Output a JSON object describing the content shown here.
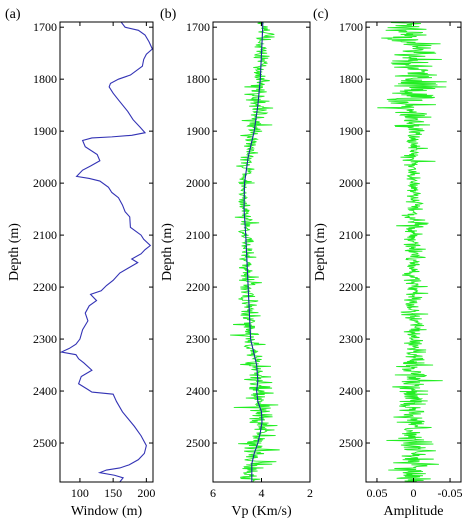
{
  "chart_data": [
    {
      "type": "line",
      "panel_label": "(a)",
      "xlabel": "Window (m)",
      "ylabel": "Depth (m)",
      "xlim": [
        70,
        210
      ],
      "ylim": [
        1690,
        2575
      ],
      "y_inverted": true,
      "xticks": [
        100,
        150,
        200
      ],
      "xtick_labels": [
        "100",
        "150",
        "200"
      ],
      "yticks": [
        1700,
        1800,
        1900,
        2000,
        2100,
        2200,
        2300,
        2400,
        2500
      ],
      "series": [
        {
          "color": "#3333b5",
          "points": [
            [
              162,
              1690
            ],
            [
              168,
              1700
            ],
            [
              188,
              1706
            ],
            [
              198,
              1715
            ],
            [
              204,
              1728
            ],
            [
              209,
              1742
            ],
            [
              200,
              1752
            ],
            [
              196,
              1762
            ],
            [
              194,
              1775
            ],
            [
              176,
              1792
            ],
            [
              158,
              1800
            ],
            [
              146,
              1808
            ],
            [
              144,
              1815
            ],
            [
              150,
              1827
            ],
            [
              158,
              1840
            ],
            [
              172,
              1862
            ],
            [
              180,
              1878
            ],
            [
              191,
              1893
            ],
            [
              198,
              1903
            ],
            [
              178,
              1908
            ],
            [
              148,
              1911
            ],
            [
              118,
              1913
            ],
            [
              104,
              1918
            ],
            [
              108,
              1930
            ],
            [
              126,
              1945
            ],
            [
              130,
              1957
            ],
            [
              116,
              1967
            ],
            [
              104,
              1975
            ],
            [
              95,
              1987
            ],
            [
              114,
              1991
            ],
            [
              130,
              1996
            ],
            [
              143,
              2008
            ],
            [
              148,
              2018
            ],
            [
              158,
              2028
            ],
            [
              164,
              2042
            ],
            [
              168,
              2055
            ],
            [
              175,
              2065
            ],
            [
              176,
              2085
            ],
            [
              192,
              2100
            ],
            [
              196,
              2108
            ],
            [
              206,
              2120
            ],
            [
              198,
              2128
            ],
            [
              192,
              2136
            ],
            [
              178,
              2146
            ],
            [
              187,
              2153
            ],
            [
              172,
              2164
            ],
            [
              160,
              2173
            ],
            [
              150,
              2187
            ],
            [
              140,
              2197
            ],
            [
              132,
              2207
            ],
            [
              116,
              2214
            ],
            [
              125,
              2226
            ],
            [
              114,
              2236
            ],
            [
              108,
              2250
            ],
            [
              112,
              2265
            ],
            [
              104,
              2282
            ],
            [
              100,
              2300
            ],
            [
              94,
              2310
            ],
            [
              84,
              2318
            ],
            [
              72,
              2325
            ],
            [
              94,
              2330
            ],
            [
              98,
              2338
            ],
            [
              106,
              2346
            ],
            [
              118,
              2360
            ],
            [
              102,
              2372
            ],
            [
              98,
              2386
            ],
            [
              112,
              2397
            ],
            [
              118,
              2402
            ],
            [
              150,
              2406
            ],
            [
              155,
              2420
            ],
            [
              164,
              2440
            ],
            [
              182,
              2468
            ],
            [
              192,
              2486
            ],
            [
              200,
              2505
            ],
            [
              197,
              2520
            ],
            [
              188,
              2532
            ],
            [
              174,
              2542
            ],
            [
              160,
              2548
            ],
            [
              140,
              2552
            ],
            [
              130,
              2557
            ],
            [
              152,
              2562
            ],
            [
              165,
              2567
            ],
            [
              160,
              2575
            ]
          ]
        }
      ]
    },
    {
      "type": "line",
      "panel_label": "(b)",
      "xlabel": "Vp (Km/s)",
      "ylabel": "Depth (m)",
      "xlim": [
        6,
        2
      ],
      "ylim": [
        1690,
        2575
      ],
      "y_inverted": true,
      "xticks": [
        6,
        4,
        2
      ],
      "xtick_labels": [
        "6",
        "4",
        "2"
      ],
      "yticks": [
        1700,
        1800,
        1900,
        2000,
        2100,
        2200,
        2300,
        2400,
        2500
      ],
      "series": [
        {
          "color": "#22ee22",
          "noisy": true,
          "variance_profile": [
            [
              1690,
              0.25
            ],
            [
              1700,
              0.35
            ],
            [
              1750,
              0.35
            ],
            [
              1800,
              0.4
            ],
            [
              1850,
              0.5
            ],
            [
              1900,
              0.35
            ],
            [
              1950,
              0.3
            ],
            [
              2000,
              0.2
            ],
            [
              2050,
              0.2
            ],
            [
              2070,
              0.4
            ],
            [
              2100,
              0.25
            ],
            [
              2200,
              0.3
            ],
            [
              2220,
              0.45
            ],
            [
              2300,
              0.35
            ],
            [
              2350,
              0.4
            ],
            [
              2400,
              0.45
            ],
            [
              2450,
              0.55
            ],
            [
              2480,
              0.6
            ],
            [
              2500,
              0.55
            ],
            [
              2575,
              0.5
            ]
          ]
        },
        {
          "color": "#1a2a9a",
          "points": [
            [
              3.95,
              1690
            ],
            [
              3.95,
              1700
            ],
            [
              4.0,
              1750
            ],
            [
              4.05,
              1800
            ],
            [
              4.15,
              1850
            ],
            [
              4.3,
              1900
            ],
            [
              4.55,
              1950
            ],
            [
              4.7,
              2000
            ],
            [
              4.72,
              2050
            ],
            [
              4.65,
              2100
            ],
            [
              4.6,
              2150
            ],
            [
              4.55,
              2200
            ],
            [
              4.5,
              2250
            ],
            [
              4.45,
              2300
            ],
            [
              4.2,
              2350
            ],
            [
              4.15,
              2380
            ],
            [
              4.2,
              2400
            ],
            [
              4.15,
              2420
            ],
            [
              4.0,
              2440
            ],
            [
              3.98,
              2460
            ],
            [
              4.05,
              2480
            ],
            [
              4.15,
              2500
            ],
            [
              4.3,
              2520
            ],
            [
              4.4,
              2540
            ],
            [
              4.4,
              2575
            ]
          ]
        }
      ]
    },
    {
      "type": "line",
      "panel_label": "(c)",
      "xlabel": "Amplitude",
      "ylabel": "Depth (m)",
      "xlim": [
        0.065,
        -0.065
      ],
      "ylim": [
        1690,
        2575
      ],
      "y_inverted": true,
      "xticks": [
        0.05,
        0,
        -0.05
      ],
      "xtick_labels": [
        "0.05",
        "0",
        "-0.05"
      ],
      "yticks": [
        1700,
        1800,
        1900,
        2000,
        2100,
        2200,
        2300,
        2400,
        2500
      ],
      "series": [
        {
          "color": "#22ee22",
          "noisy": true,
          "amplitude_profile": [
            [
              1690,
              0.04
            ],
            [
              1700,
              0.05
            ],
            [
              1750,
              0.045
            ],
            [
              1800,
              0.055
            ],
            [
              1820,
              0.06
            ],
            [
              1850,
              0.05
            ],
            [
              1880,
              0.03
            ],
            [
              1900,
              0.015
            ],
            [
              1950,
              0.02
            ],
            [
              2000,
              0.012
            ],
            [
              2050,
              0.015
            ],
            [
              2080,
              0.03
            ],
            [
              2100,
              0.02
            ],
            [
              2200,
              0.015
            ],
            [
              2300,
              0.02
            ],
            [
              2350,
              0.025
            ],
            [
              2400,
              0.03
            ],
            [
              2450,
              0.03
            ],
            [
              2500,
              0.03
            ],
            [
              2575,
              0.035
            ]
          ]
        }
      ]
    }
  ]
}
